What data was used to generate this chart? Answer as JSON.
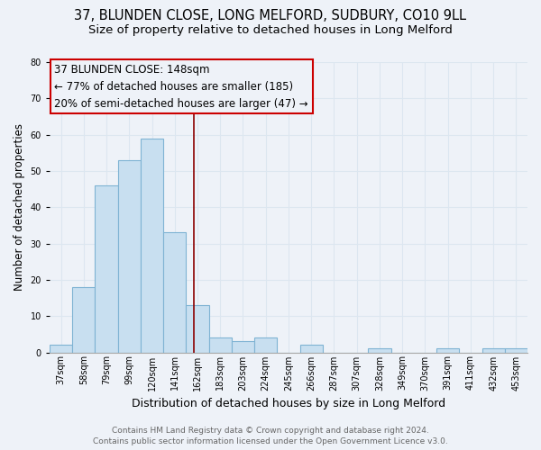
{
  "title": "37, BLUNDEN CLOSE, LONG MELFORD, SUDBURY, CO10 9LL",
  "subtitle": "Size of property relative to detached houses in Long Melford",
  "xlabel": "Distribution of detached houses by size in Long Melford",
  "ylabel": "Number of detached properties",
  "bar_color": "#c8dff0",
  "bar_edge_color": "#7fb3d3",
  "bg_color": "#eef2f8",
  "categories": [
    "37sqm",
    "58sqm",
    "79sqm",
    "99sqm",
    "120sqm",
    "141sqm",
    "162sqm",
    "183sqm",
    "203sqm",
    "224sqm",
    "245sqm",
    "266sqm",
    "287sqm",
    "307sqm",
    "328sqm",
    "349sqm",
    "370sqm",
    "391sqm",
    "411sqm",
    "432sqm",
    "453sqm"
  ],
  "values": [
    2,
    18,
    46,
    53,
    59,
    33,
    13,
    4,
    3,
    4,
    0,
    2,
    0,
    0,
    1,
    0,
    0,
    1,
    0,
    1,
    1
  ],
  "ylim": [
    0,
    80
  ],
  "yticks": [
    0,
    10,
    20,
    30,
    40,
    50,
    60,
    70,
    80
  ],
  "red_line_x": 5.83,
  "annotation_line1": "37 BLUNDEN CLOSE: 148sqm",
  "annotation_line2": "← 77% of detached houses are smaller (185)",
  "annotation_line3": "20% of semi-detached houses are larger (47) →",
  "footer_line1": "Contains HM Land Registry data © Crown copyright and database right 2024.",
  "footer_line2": "Contains public sector information licensed under the Open Government Licence v3.0.",
  "grid_color": "#dce6f0",
  "title_fontsize": 10.5,
  "subtitle_fontsize": 9.5,
  "annotation_fontsize": 8.5,
  "ylabel_fontsize": 8.5,
  "xlabel_fontsize": 9,
  "tick_fontsize": 7,
  "footer_fontsize": 6.5
}
